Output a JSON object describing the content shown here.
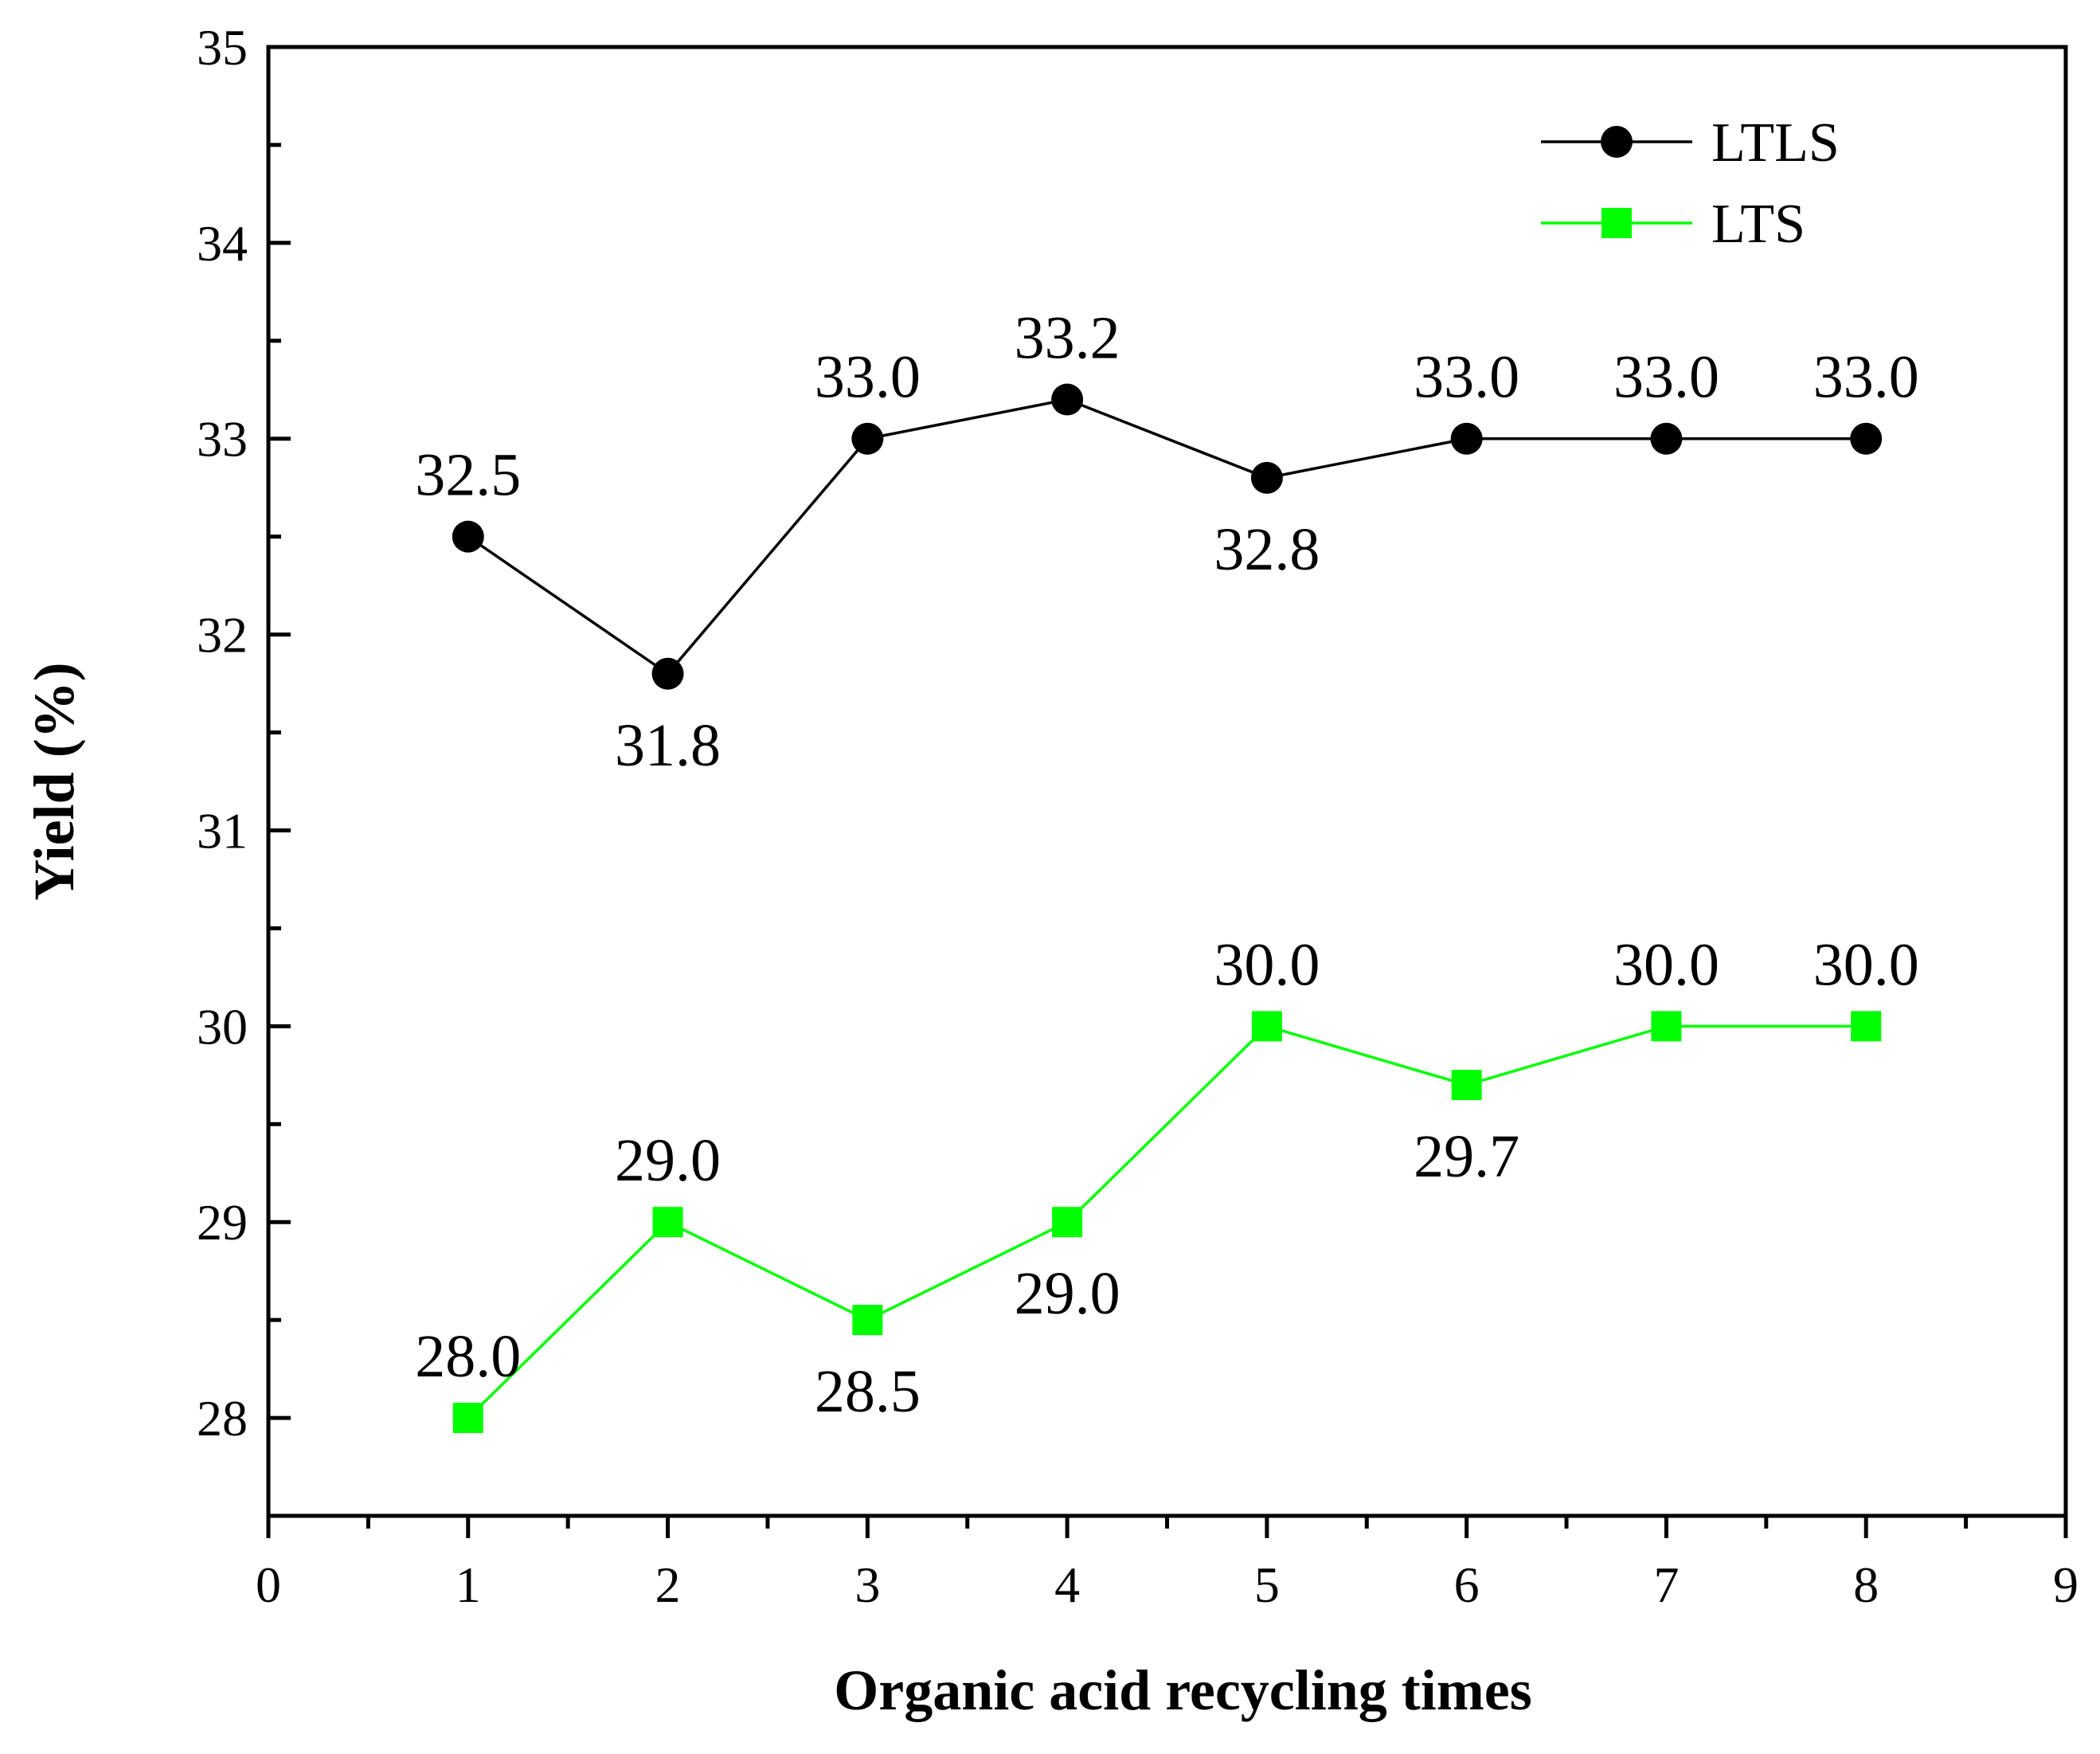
{
  "chart_data": {
    "type": "line",
    "title": "",
    "xlabel": "Organic acid recycling times",
    "ylabel": "Yield (%)",
    "xlim": [
      0,
      9
    ],
    "ylim": [
      27.5,
      35
    ],
    "x_ticks": [
      "0",
      "1",
      "2",
      "3",
      "4",
      "5",
      "6",
      "7",
      "8",
      "9"
    ],
    "y_ticks": [
      "28",
      "29",
      "30",
      "31",
      "32",
      "33",
      "34",
      "35"
    ],
    "grid": false,
    "legend_position": "top-right",
    "x": [
      1,
      2,
      3,
      4,
      5,
      6,
      7,
      8
    ],
    "series": [
      {
        "name": "LTLS",
        "color": "#000000",
        "marker": "circle",
        "values": [
          32.5,
          31.8,
          33.0,
          33.2,
          32.8,
          33.0,
          33.0,
          33.0
        ],
        "labels": [
          "32.5",
          "31.8",
          "33.0",
          "33.2",
          "32.8",
          "33.0",
          "33.0",
          "33.0"
        ],
        "label_side": [
          "above",
          "below",
          "above",
          "above",
          "below",
          "above",
          "above",
          "above"
        ]
      },
      {
        "name": "LTS",
        "color": "#00ff00",
        "marker": "square",
        "values": [
          28.0,
          29.0,
          28.5,
          29.0,
          30.0,
          29.7,
          30.0,
          30.0
        ],
        "labels": [
          "28.0",
          "29.0",
          "28.5",
          "29.0",
          "30.0",
          "29.7",
          "30.0",
          "30.0"
        ],
        "label_side": [
          "above",
          "above",
          "below",
          "below",
          "above",
          "below",
          "above",
          "above"
        ]
      }
    ]
  }
}
